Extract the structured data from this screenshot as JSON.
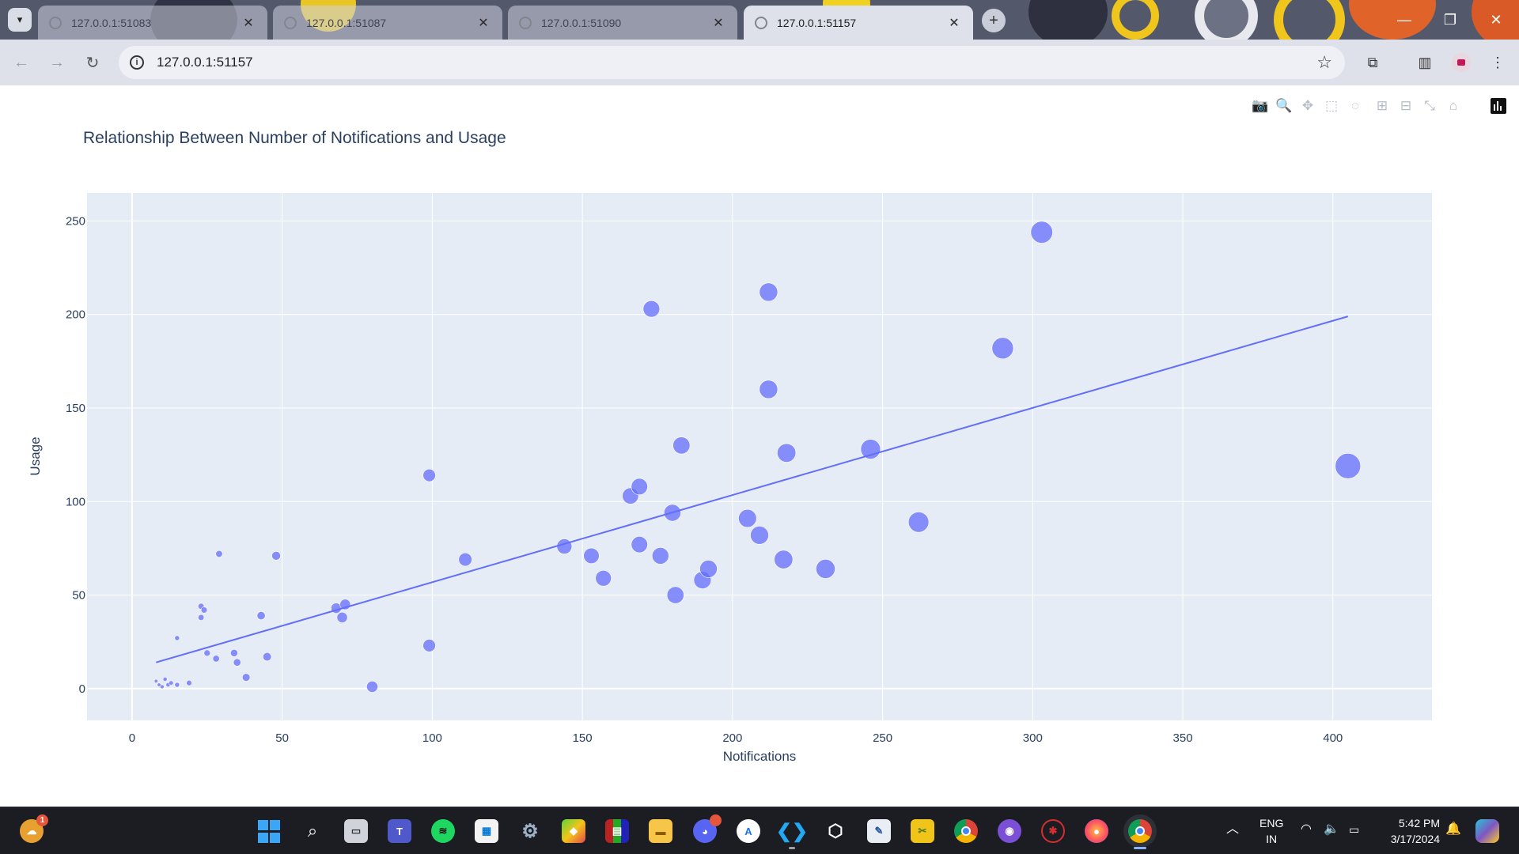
{
  "browser": {
    "tabs": [
      {
        "title": "127.0.0.1:51083",
        "close": "✕",
        "active": false
      },
      {
        "title": "127.0.0.1:51087",
        "close": "✕",
        "active": false
      },
      {
        "title": "127.0.0.1:51090",
        "close": "✕",
        "active": false
      },
      {
        "title": "127.0.0.1:51157",
        "close": "✕",
        "active": true
      }
    ],
    "new_tab": "+",
    "url": "127.0.0.1:51157",
    "window_controls": {
      "minimize": "—",
      "restore": "❐",
      "close": "✕"
    }
  },
  "plot_toolbar": {
    "icons": [
      "camera-icon",
      "zoom-icon",
      "pan-icon",
      "box-select-icon",
      "lasso-select-icon",
      "zoom-in-icon",
      "zoom-out-icon",
      "autoscale-icon",
      "reset-axes-icon",
      "plotly-logo"
    ]
  },
  "chart_data": {
    "type": "scatter",
    "title": "Relationship Between Number of Notifications and Usage",
    "xlabel": "Notifications",
    "ylabel": "Usage",
    "xlim": [
      -15,
      433
    ],
    "ylim": [
      -17,
      265
    ],
    "xticks": [
      0,
      50,
      100,
      150,
      200,
      250,
      300,
      350,
      400
    ],
    "yticks": [
      0,
      50,
      100,
      150,
      200,
      250
    ],
    "grid": true,
    "marker_color": "#636efa",
    "marker_size_encodes": "Notifications",
    "points": [
      {
        "x": 8,
        "y": 4
      },
      {
        "x": 9,
        "y": 2
      },
      {
        "x": 10,
        "y": 1
      },
      {
        "x": 11,
        "y": 5
      },
      {
        "x": 12,
        "y": 2
      },
      {
        "x": 13,
        "y": 3
      },
      {
        "x": 15,
        "y": 2
      },
      {
        "x": 15,
        "y": 27
      },
      {
        "x": 19,
        "y": 3
      },
      {
        "x": 23,
        "y": 38
      },
      {
        "x": 23,
        "y": 44
      },
      {
        "x": 24,
        "y": 42
      },
      {
        "x": 25,
        "y": 19
      },
      {
        "x": 28,
        "y": 16
      },
      {
        "x": 29,
        "y": 72
      },
      {
        "x": 34,
        "y": 19
      },
      {
        "x": 35,
        "y": 14
      },
      {
        "x": 38,
        "y": 6
      },
      {
        "x": 43,
        "y": 39
      },
      {
        "x": 45,
        "y": 17
      },
      {
        "x": 48,
        "y": 71
      },
      {
        "x": 68,
        "y": 43
      },
      {
        "x": 70,
        "y": 38
      },
      {
        "x": 71,
        "y": 45
      },
      {
        "x": 80,
        "y": 1
      },
      {
        "x": 99,
        "y": 114
      },
      {
        "x": 99,
        "y": 23
      },
      {
        "x": 111,
        "y": 69
      },
      {
        "x": 144,
        "y": 76
      },
      {
        "x": 153,
        "y": 71
      },
      {
        "x": 157,
        "y": 59
      },
      {
        "x": 166,
        "y": 103
      },
      {
        "x": 169,
        "y": 108
      },
      {
        "x": 169,
        "y": 77
      },
      {
        "x": 173,
        "y": 203
      },
      {
        "x": 176,
        "y": 71
      },
      {
        "x": 180,
        "y": 94
      },
      {
        "x": 181,
        "y": 50
      },
      {
        "x": 183,
        "y": 130
      },
      {
        "x": 190,
        "y": 58
      },
      {
        "x": 192,
        "y": 64
      },
      {
        "x": 205,
        "y": 91
      },
      {
        "x": 209,
        "y": 82
      },
      {
        "x": 212,
        "y": 212
      },
      {
        "x": 212,
        "y": 160
      },
      {
        "x": 217,
        "y": 69
      },
      {
        "x": 218,
        "y": 126
      },
      {
        "x": 231,
        "y": 64
      },
      {
        "x": 246,
        "y": 128
      },
      {
        "x": 262,
        "y": 89
      },
      {
        "x": 290,
        "y": 182
      },
      {
        "x": 303,
        "y": 244
      },
      {
        "x": 405,
        "y": 119
      }
    ],
    "trendline": {
      "type": "ols",
      "x": [
        8,
        405
      ],
      "y": [
        14,
        199
      ]
    }
  },
  "taskbar": {
    "widget_badge": "1",
    "language": "ENG",
    "region": "IN",
    "time": "5:42 PM",
    "date": "3/17/2024"
  }
}
